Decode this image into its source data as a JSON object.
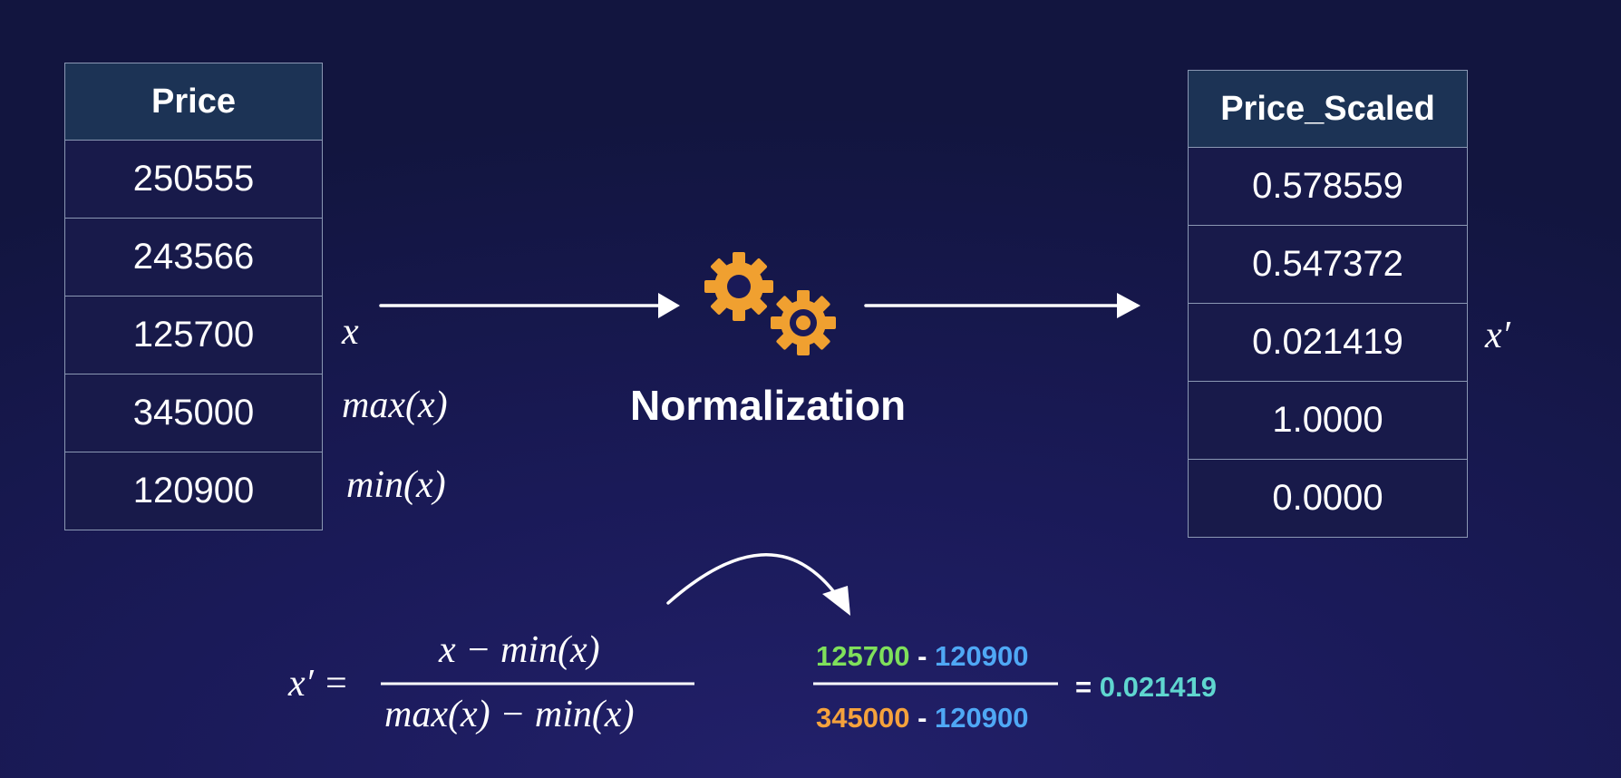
{
  "price_table": {
    "header": "Price",
    "rows": [
      {
        "value": "250555",
        "color": "#ffffff"
      },
      {
        "value": "243566",
        "color": "#ffffff"
      },
      {
        "value": "125700",
        "color": "#7fe05b"
      },
      {
        "value": "345000",
        "color": "#f5a23c"
      },
      {
        "value": "120900",
        "color": "#4fa8f5"
      }
    ]
  },
  "scaled_table": {
    "header": "Price_Scaled",
    "rows": [
      {
        "value": "0.578559",
        "color": "#ffffff"
      },
      {
        "value": "0.547372",
        "color": "#ffffff"
      },
      {
        "value": "0.021419",
        "color": "#5fd6cf"
      },
      {
        "value": "1.0000",
        "color": "#ffffff"
      },
      {
        "value": "0.0000",
        "color": "#ffffff"
      }
    ]
  },
  "labels": {
    "x": "x",
    "max": "max(x)",
    "min": "min(x)",
    "x_prime": "x′"
  },
  "process": {
    "title": "Normalization",
    "icon": "gears-icon",
    "icon_color": "#f0a030"
  },
  "formula": {
    "lhs": "x′ =",
    "numerator": "x − min(x)",
    "denominator": "max(x) − min(x)"
  },
  "calculation": {
    "num_a": "125700",
    "num_b": "120900",
    "den_a": "345000",
    "den_b": "120900",
    "minus": "-",
    "equals": "=",
    "result": "0.021419"
  }
}
